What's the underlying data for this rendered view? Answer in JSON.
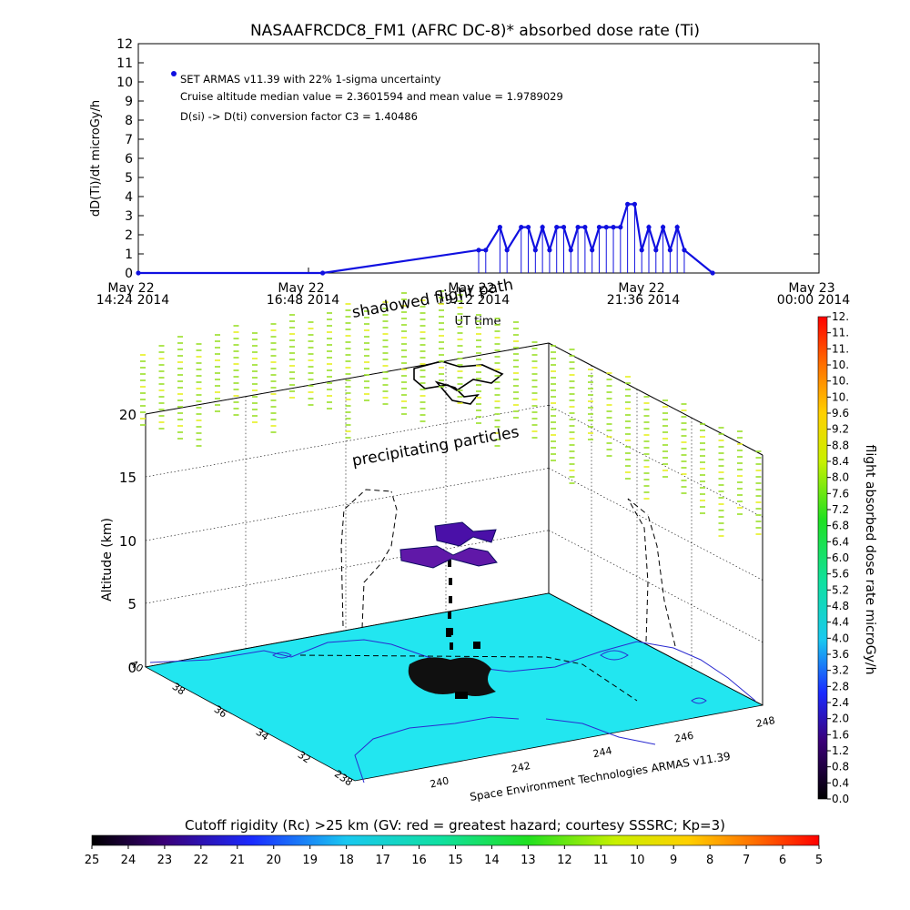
{
  "chart_data": [
    {
      "type": "line",
      "title": "NASAAFRCDC8_FM1 (AFRC DC-8)* absorbed dose rate (Ti)",
      "ylabel": "dD(Ti)/dt microGy/h",
      "xlabel": "UT time",
      "ylim": [
        0,
        12
      ],
      "y_ticks": [
        "0",
        "1",
        "2",
        "3",
        "4",
        "5",
        "6",
        "7",
        "8",
        "9",
        "10",
        "11",
        "12"
      ],
      "x_ticks": [
        {
          "l1": "May 22",
          "l2": "14:24 2014"
        },
        {
          "l1": "May 22",
          "l2": "16:48 2014"
        },
        {
          "l1": "May 22",
          "l2": "19:12 2014"
        },
        {
          "l1": "May 22",
          "l2": "21:36 2014"
        },
        {
          "l1": "May 23",
          "l2": "00:00 2014"
        }
      ],
      "annotations": [
        "SET ARMAS v11.39 with 22% 1-sigma uncertainty",
        "Cruise altitude median value = 2.3601594 and mean value = 1.9789029",
        "D(si) -> D(ti) conversion factor C3 = 1.40486"
      ],
      "series": [
        {
          "name": "SET ARMAS v11.39",
          "color": "#1010e0",
          "x_hours": [
            14.4,
            17.0,
            19.2,
            19.3,
            19.5,
            19.6,
            19.8,
            19.9,
            20.0,
            20.1,
            20.2,
            20.3,
            20.4,
            20.5,
            20.6,
            20.7,
            20.8,
            20.9,
            21.0,
            21.1,
            21.2,
            21.3,
            21.4,
            21.5,
            21.6,
            21.7,
            21.8,
            21.9,
            22.0,
            22.1,
            22.5
          ],
          "values": [
            0.0,
            0.0,
            1.2,
            1.2,
            2.4,
            1.2,
            2.4,
            2.4,
            1.2,
            2.4,
            1.2,
            2.4,
            2.4,
            1.2,
            2.4,
            2.4,
            1.2,
            2.4,
            2.4,
            2.4,
            2.4,
            3.6,
            3.6,
            1.2,
            2.4,
            1.2,
            2.4,
            1.2,
            2.4,
            1.2,
            0.0
          ]
        }
      ]
    },
    {
      "type": "scatter",
      "subtype": "3d-flight-path",
      "zlabel": "Altitude (km)",
      "z_ticks": [
        "0",
        "5",
        "10",
        "15",
        "20"
      ],
      "lat_ticks": [
        "40",
        "38",
        "36",
        "34",
        "32",
        "238"
      ],
      "lon_ticks": [
        "240",
        "242",
        "244",
        "246",
        "248"
      ],
      "annotations": [
        "shadowed flight path",
        "precipitating particles"
      ],
      "credit": "Space Environment Technologies ARMAS v11.39",
      "ground_color": "#22e6f0"
    },
    {
      "type": "heatmap",
      "subtype": "vertical-colorbar",
      "label": "flight absorbed dose rate microGy/h",
      "ticks": [
        "0.0",
        "0.4",
        "0.8",
        "1.2",
        "1.6",
        "2.0",
        "2.4",
        "2.8",
        "3.2",
        "3.6",
        "4.0",
        "4.4",
        "4.8",
        "5.2",
        "5.6",
        "6.0",
        "6.4",
        "6.8",
        "7.2",
        "7.6",
        "8.0",
        "8.4",
        "8.8",
        "9.2",
        "9.6",
        "10.",
        "10.",
        "10.",
        "11.",
        "11.",
        "12."
      ]
    },
    {
      "type": "heatmap",
      "subtype": "horizontal-colorbar",
      "label": "Cutoff rigidity (Rc) >25 km (GV: red = greatest hazard; courtesy SSSRC; Kp=3)",
      "ticks": [
        "25",
        "24",
        "23",
        "22",
        "21",
        "20",
        "19",
        "18",
        "17",
        "16",
        "15",
        "14",
        "13",
        "12",
        "11",
        "10",
        "9",
        "8",
        "7",
        "6",
        "5"
      ]
    }
  ]
}
